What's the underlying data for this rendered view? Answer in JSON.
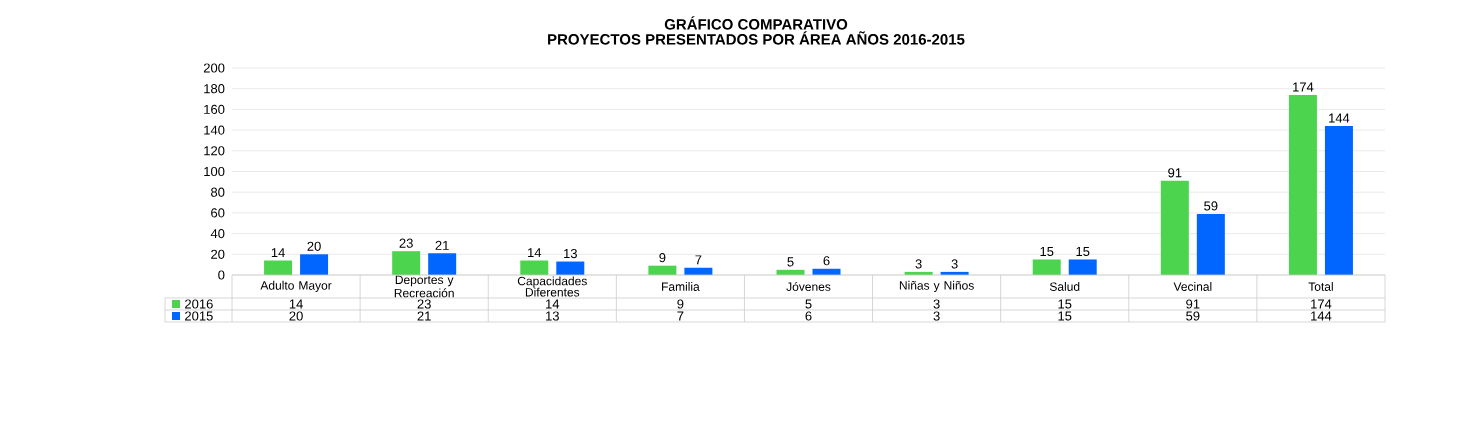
{
  "chart_data": {
    "type": "bar",
    "title": "GRÁFICO COMPARATIVO",
    "subtitle": "PROYECTOS PRESENTADOS POR ÁREA AÑOS 2016-2015",
    "categories": [
      "Adulto Mayor",
      "Deportes y Recreación",
      "Capacidades Diferentes",
      "Familia",
      "Jóvenes",
      "Niñas y Niños",
      "Salud",
      "Vecinal",
      "Total"
    ],
    "series": [
      {
        "name": "2016",
        "color": "#4cd44f",
        "values": [
          14,
          23,
          14,
          9,
          5,
          3,
          15,
          91,
          174
        ],
        "value_labels": [
          "14",
          "23",
          "14",
          "9",
          "5",
          "3",
          "15",
          "91",
          "174"
        ]
      },
      {
        "name": "2015",
        "color": "#0066ff",
        "values": [
          20,
          21,
          13,
          7,
          6,
          3,
          15,
          59,
          144
        ],
        "value_labels": [
          "20",
          "21",
          "13",
          "7",
          "6",
          "3",
          "15",
          "59",
          "144"
        ]
      }
    ],
    "ylim": [
      0,
      200
    ],
    "yticks": [
      0,
      20,
      40,
      60,
      80,
      100,
      120,
      140,
      160,
      180,
      200
    ],
    "grid": "y",
    "legend": "bottom left"
  }
}
